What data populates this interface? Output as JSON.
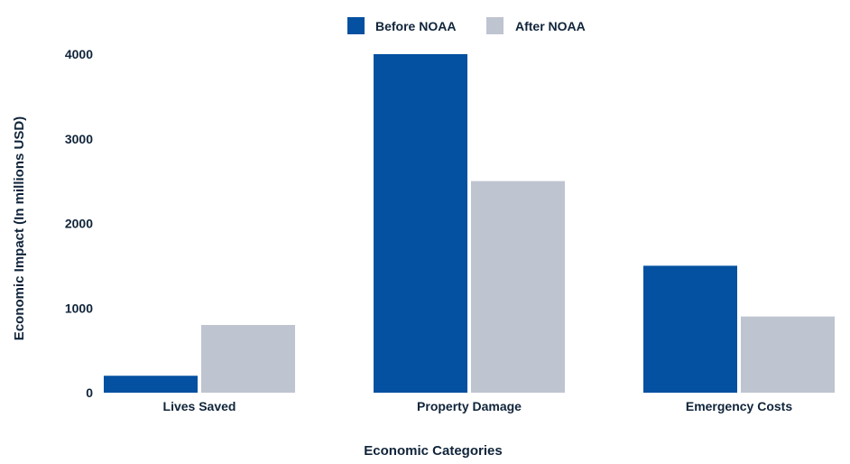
{
  "chart_data": {
    "type": "bar",
    "categories": [
      "Lives Saved",
      "Property Damage",
      "Emergency Costs"
    ],
    "series": [
      {
        "name": "Before NOAA",
        "values": [
          200,
          4000,
          1500
        ],
        "color": "#0450a1"
      },
      {
        "name": "After NOAA",
        "values": [
          800,
          2500,
          900
        ],
        "color": "#bec4d0"
      }
    ],
    "xlabel": "Economic Categories",
    "ylabel": "Economic Impact (In millions USD)",
    "ylim": [
      0,
      4000
    ],
    "yticks": [
      0,
      1000,
      2000,
      3000,
      4000
    ],
    "grid": false,
    "legend_position": "top-center"
  }
}
